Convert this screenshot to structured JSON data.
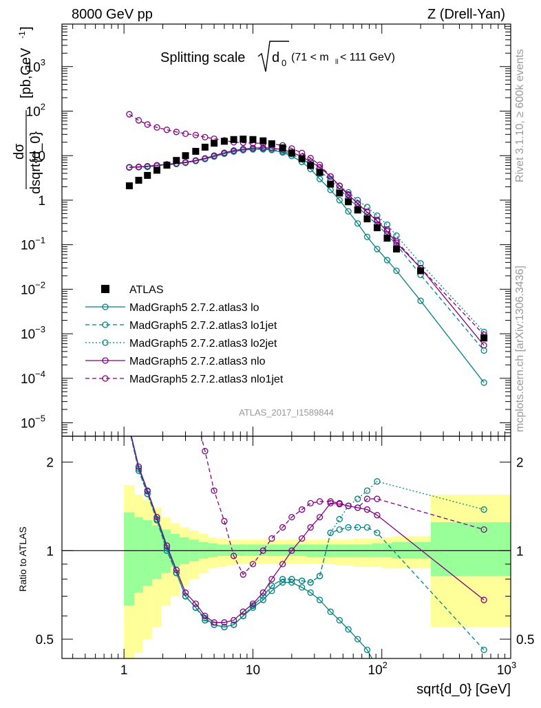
{
  "header": {
    "left": "8000 GeV pp",
    "right": "Z (Drell-Yan)",
    "plot_title_main": "Splitting scale",
    "plot_title_sym": "d",
    "plot_title_sub": "0",
    "plot_title_range_a": "(71 < m",
    "plot_title_range_sub": "ll",
    "plot_title_range_b": " < 111 GeV)",
    "side_top": "Rivet 3.1.10, ≥ 600k events",
    "side_bottom": "mcplots.cern.ch [arXiv:1306.3436]",
    "analysis_id": "ATLAS_2017_I1589844"
  },
  "axes": {
    "ylabel_top_num": "dσ",
    "ylabel_top_den": "dsqrt{d_0}",
    "ylabel_top_unit": "[pb,GeV",
    "ylabel_top_unit_sup": "-1",
    "ylabel_top_unit_end": "]",
    "ylabel_bottom": "Ratio to ATLAS",
    "xlabel": "sqrt{d_0} [GeV]",
    "x_ticks": [
      {
        "v": 1,
        "label": "1",
        "sup": ""
      },
      {
        "v": 10,
        "label": "10",
        "sup": ""
      },
      {
        "v": 100,
        "label": "10",
        "sup": "2"
      },
      {
        "v": 1000,
        "label": "10",
        "sup": "3"
      }
    ],
    "y_ticks_top": [
      {
        "v": 1e-05,
        "label": "10",
        "sup": "−5"
      },
      {
        "v": 0.0001,
        "label": "10",
        "sup": "−4"
      },
      {
        "v": 0.001,
        "label": "10",
        "sup": "−3"
      },
      {
        "v": 0.01,
        "label": "10",
        "sup": "−2"
      },
      {
        "v": 0.1,
        "label": "10",
        "sup": "−1"
      },
      {
        "v": 1,
        "label": "1",
        "sup": ""
      },
      {
        "v": 10,
        "label": "10",
        "sup": ""
      },
      {
        "v": 100,
        "label": "10",
        "sup": "2"
      },
      {
        "v": 1000,
        "label": "10",
        "sup": "3"
      }
    ],
    "y_ticks_bottom": [
      {
        "v": 0.5,
        "label": "0.5"
      },
      {
        "v": 1,
        "label": "1"
      },
      {
        "v": 2,
        "label": "2"
      }
    ]
  },
  "legend": [
    {
      "label": "ATLAS",
      "kind": "data"
    },
    {
      "label": "MadGraph5 2.7.2.atlas3 lo",
      "kind": "lo"
    },
    {
      "label": "MadGraph5 2.7.2.atlas3 lo1jet",
      "kind": "lo1jet"
    },
    {
      "label": "MadGraph5 2.7.2.atlas3 lo2jet",
      "kind": "lo2jet"
    },
    {
      "label": "MadGraph5 2.7.2.atlas3 nlo",
      "kind": "nlo"
    },
    {
      "label": "MadGraph5 2.7.2.atlas3 nlo1jet",
      "kind": "nlo1jet"
    }
  ],
  "colors": {
    "teal": "#008080",
    "purple": "#800080",
    "band_yellow": "#ffff99",
    "band_green": "#99ff99"
  },
  "chart_data": [
    {
      "type": "scatter",
      "title": "Splitting scale √d0 (71 < m_ll < 111 GeV)",
      "xlabel": "sqrt{d_0} [GeV]",
      "ylabel": "dσ/dsqrt{d_0} [pb,GeV^-1]",
      "xscale": "log",
      "yscale": "log",
      "xlim": [
        0.33,
        1000
      ],
      "ylim": [
        5e-06,
        9000
      ],
      "x": [
        1.1,
        1.3,
        1.52,
        1.8,
        2.15,
        2.55,
        3.0,
        3.6,
        4.25,
        5.0,
        6.0,
        7.1,
        8.4,
        10.0,
        12.0,
        14.0,
        17.0,
        20.0,
        24.0,
        28.0,
        33.0,
        40.0,
        47.0,
        55.0,
        65.0,
        77.0,
        92.0,
        110.0,
        130.0,
        200.0,
        620.0
      ],
      "series": [
        {
          "name": "ATLAS",
          "style": "data",
          "values": [
            2.1,
            2.8,
            3.6,
            4.7,
            6.1,
            7.8,
            10.0,
            12.5,
            15.5,
            19.0,
            21.0,
            23.0,
            23.5,
            23.0,
            21.5,
            18.5,
            15.0,
            11.5,
            8.5,
            6.0,
            4.2,
            2.3,
            1.45,
            0.92,
            0.6,
            0.38,
            0.24,
            0.14,
            0.08,
            0.026,
            0.0008
          ]
        },
        {
          "name": "MadGraph5 2.7.2.atlas3 lo",
          "style": "lo",
          "values": [
            5.5,
            5.6,
            5.7,
            6.0,
            6.3,
            6.6,
            7.0,
            7.6,
            8.4,
            9.5,
            11.0,
            12.3,
            13.3,
            13.8,
            13.9,
            13.4,
            11.8,
            9.8,
            7.2,
            5.0,
            3.0,
            1.7,
            1.0,
            0.56,
            0.3,
            0.15,
            0.08,
            0.045,
            0.026,
            0.0055,
            8e-05
          ]
        },
        {
          "name": "MadGraph5 2.7.2.atlas3 lo1jet",
          "style": "lo1jet",
          "values": [
            5.4,
            5.5,
            5.6,
            5.9,
            6.2,
            6.5,
            6.9,
            7.6,
            8.5,
            9.7,
            11.2,
            12.6,
            13.6,
            14.2,
            14.3,
            13.8,
            12.5,
            10.8,
            8.5,
            6.4,
            4.4,
            2.8,
            1.8,
            1.1,
            0.7,
            0.45,
            0.28,
            0.17,
            0.1,
            0.021,
            0.00042
          ]
        },
        {
          "name": "MadGraph5 2.7.2.atlas3 lo2jet",
          "style": "lo2jet",
          "values": [
            5.4,
            5.5,
            5.6,
            5.9,
            6.2,
            6.5,
            6.9,
            7.6,
            8.5,
            9.7,
            11.2,
            12.6,
            13.6,
            14.2,
            14.3,
            13.8,
            12.5,
            10.8,
            8.5,
            6.4,
            4.4,
            3.0,
            2.1,
            1.5,
            1.0,
            0.7,
            0.45,
            0.28,
            0.16,
            0.038,
            0.0011
          ]
        },
        {
          "name": "MadGraph5 2.7.2.atlas3 nlo",
          "style": "nlo",
          "values": [
            5.5,
            5.6,
            5.8,
            6.1,
            6.4,
            6.7,
            7.1,
            7.8,
            8.7,
            10.0,
            11.6,
            13.0,
            14.0,
            14.8,
            15.0,
            14.8,
            13.6,
            11.8,
            9.5,
            7.3,
            5.5,
            3.4,
            2.1,
            1.35,
            0.83,
            0.54,
            0.34,
            0.2,
            0.11,
            0.03,
            0.00055
          ]
        },
        {
          "name": "MadGraph5 2.7.2.atlas3 nlo1jet",
          "style": "nlo1jet",
          "values": [
            85,
            62,
            50,
            43,
            38,
            34,
            31,
            29,
            26,
            24,
            22,
            20,
            19.5,
            19.0,
            19.0,
            18.5,
            17.0,
            14.5,
            11.5,
            8.8,
            6.2,
            3.4,
            2.1,
            1.3,
            0.85,
            0.55,
            0.36,
            0.22,
            0.12,
            0.03,
            0.00095
          ]
        }
      ]
    },
    {
      "type": "line",
      "ylabel": "Ratio to ATLAS",
      "xscale": "log",
      "yscale": "log",
      "xlim": [
        0.33,
        1000
      ],
      "ylim": [
        0.43,
        2.45
      ],
      "band_edges": [
        1.0,
        1.2,
        1.4,
        1.65,
        1.95,
        2.3,
        2.7,
        3.2,
        3.8,
        4.5,
        5.3,
        6.3,
        7.5,
        9.0,
        11.0,
        13.0,
        15.5,
        18.5,
        22.0,
        26.0,
        30.5,
        36.0,
        43.0,
        51.0,
        60.0,
        71.0,
        84.0,
        100.0,
        120.0,
        240.0,
        1000.0
      ],
      "band_total": [
        [
          0.35,
          1.67
        ],
        [
          0.45,
          1.55
        ],
        [
          0.5,
          1.49
        ],
        [
          0.55,
          1.4
        ],
        [
          0.65,
          1.3
        ],
        [
          0.7,
          1.24
        ],
        [
          0.76,
          1.2
        ],
        [
          0.8,
          1.17
        ],
        [
          0.84,
          1.14
        ],
        [
          0.87,
          1.11
        ],
        [
          0.88,
          1.1
        ],
        [
          0.89,
          1.09
        ],
        [
          0.9,
          1.09
        ],
        [
          0.9,
          1.09
        ],
        [
          0.9,
          1.09
        ],
        [
          0.9,
          1.09
        ],
        [
          0.9,
          1.09
        ],
        [
          0.9,
          1.09
        ],
        [
          0.9,
          1.09
        ],
        [
          0.9,
          1.09
        ],
        [
          0.9,
          1.09
        ],
        [
          0.9,
          1.09
        ],
        [
          0.89,
          1.09
        ],
        [
          0.89,
          1.09
        ],
        [
          0.88,
          1.1
        ],
        [
          0.88,
          1.1
        ],
        [
          0.88,
          1.1
        ],
        [
          0.87,
          1.11
        ],
        [
          0.87,
          1.12
        ],
        [
          0.55,
          1.55
        ]
      ],
      "band_stat": [
        [
          0.65,
          1.35
        ],
        [
          0.72,
          1.3
        ],
        [
          0.76,
          1.27
        ],
        [
          0.8,
          1.22
        ],
        [
          0.84,
          1.18
        ],
        [
          0.88,
          1.14
        ],
        [
          0.9,
          1.11
        ],
        [
          0.92,
          1.09
        ],
        [
          0.94,
          1.07
        ],
        [
          0.95,
          1.06
        ],
        [
          0.96,
          1.05
        ],
        [
          0.96,
          1.05
        ],
        [
          0.96,
          1.05
        ],
        [
          0.96,
          1.05
        ],
        [
          0.96,
          1.05
        ],
        [
          0.96,
          1.05
        ],
        [
          0.96,
          1.05
        ],
        [
          0.96,
          1.05
        ],
        [
          0.96,
          1.05
        ],
        [
          0.95,
          1.05
        ],
        [
          0.95,
          1.05
        ],
        [
          0.95,
          1.05
        ],
        [
          0.95,
          1.05
        ],
        [
          0.95,
          1.05
        ],
        [
          0.95,
          1.05
        ],
        [
          0.95,
          1.05
        ],
        [
          0.95,
          1.06
        ],
        [
          0.95,
          1.06
        ],
        [
          0.94,
          1.07
        ],
        [
          0.82,
          1.25
        ]
      ],
      "x": [
        1.1,
        1.3,
        1.52,
        1.8,
        2.15,
        2.55,
        3.0,
        3.6,
        4.25,
        5.0,
        6.0,
        7.1,
        8.4,
        10.0,
        12.0,
        14.0,
        17.0,
        20.0,
        24.0,
        28.0,
        33.0,
        40.0,
        47.0,
        55.0,
        65.0,
        77.0,
        92.0,
        110.0,
        130.0,
        200.0,
        620.0
      ],
      "series": [
        {
          "name": "MadGraph5 2.7.2.atlas3 lo",
          "style": "lo",
          "values": [
            2.6,
            1.9,
            1.59,
            1.28,
            1.02,
            0.84,
            0.7,
            0.64,
            0.59,
            0.56,
            0.55,
            0.56,
            0.6,
            0.64,
            0.68,
            0.73,
            0.78,
            0.78,
            0.75,
            0.72,
            0.68,
            0.62,
            0.58,
            0.54,
            0.5,
            0.46,
            0.4,
            null,
            null,
            null,
            null
          ]
        },
        {
          "name": "MadGraph5 2.7.2.atlas3 lo1jet",
          "style": "lo1jet",
          "values": [
            2.58,
            1.87,
            1.56,
            1.27,
            1.0,
            0.84,
            0.7,
            0.64,
            0.58,
            0.56,
            0.55,
            0.56,
            0.6,
            0.65,
            0.7,
            0.76,
            0.8,
            0.8,
            0.79,
            0.78,
            0.82,
            1.15,
            1.18,
            1.2,
            1.2,
            1.2,
            1.15,
            null,
            null,
            null,
            0.46
          ]
        },
        {
          "name": "MadGraph5 2.7.2.atlas3 lo2jet",
          "style": "lo2jet",
          "values": [
            2.58,
            1.87,
            1.56,
            1.27,
            1.0,
            0.84,
            0.7,
            0.64,
            0.58,
            0.56,
            0.55,
            0.56,
            0.6,
            0.65,
            0.7,
            0.76,
            0.8,
            0.8,
            0.79,
            0.78,
            0.82,
            1.15,
            1.28,
            1.42,
            1.5,
            1.6,
            1.72,
            null,
            null,
            null,
            1.38
          ]
        },
        {
          "name": "MadGraph5 2.7.2.atlas3 nlo",
          "style": "nlo",
          "values": [
            2.62,
            1.93,
            1.6,
            1.3,
            1.04,
            0.86,
            0.72,
            0.66,
            0.6,
            0.57,
            0.57,
            0.58,
            0.62,
            0.66,
            0.72,
            0.8,
            0.9,
            1.0,
            1.1,
            1.2,
            1.3,
            1.45,
            1.44,
            1.42,
            1.4,
            1.38,
            1.32,
            null,
            null,
            null,
            0.68
          ]
        },
        {
          "name": "MadGraph5 2.7.2.atlas3 nlo1jet",
          "style": "nlo1jet",
          "values": [
            null,
            null,
            null,
            null,
            null,
            null,
            null,
            2.9,
            2.18,
            1.6,
            1.26,
            0.96,
            0.83,
            0.9,
            1.0,
            1.1,
            1.2,
            1.3,
            1.38,
            1.45,
            1.47,
            1.47,
            1.45,
            1.42,
            1.4,
            1.5,
            1.5,
            null,
            null,
            null,
            1.18
          ]
        }
      ]
    }
  ]
}
